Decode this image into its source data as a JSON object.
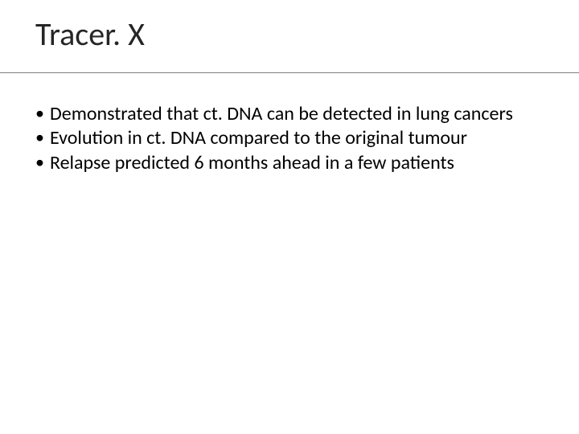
{
  "slide": {
    "title": "Tracer. X",
    "bullets": [
      "Demonstrated that ct. DNA can be detected in lung cancers",
      "Evolution in ct. DNA compared to the original tumour",
      "Relapse predicted 6 months ahead in a few patients"
    ]
  },
  "style": {
    "background_color": "#ffffff",
    "title_color": "#262626",
    "title_fontsize": 40,
    "body_color": "#000000",
    "body_fontsize": 24,
    "divider_color": "#7f7f7f"
  }
}
